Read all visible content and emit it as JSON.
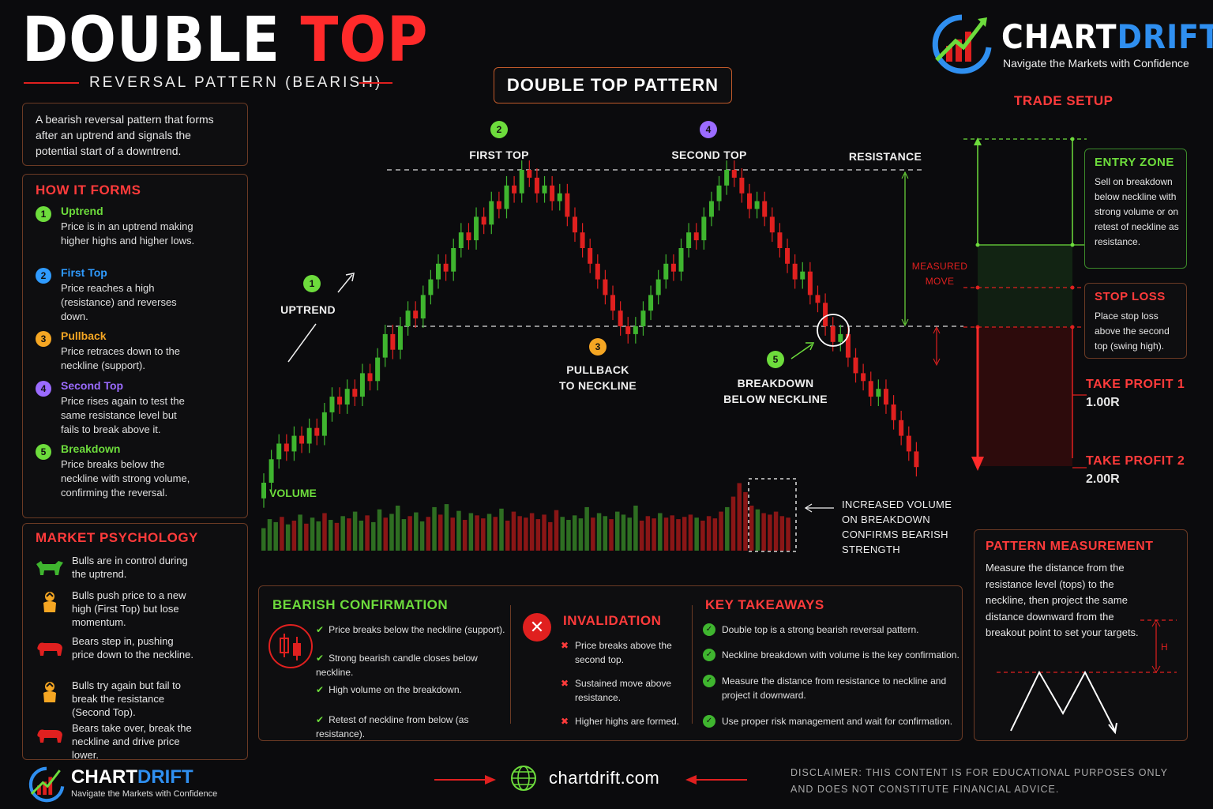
{
  "header": {
    "title_part1": "DOUBLE ",
    "title_part2": "TOP",
    "subtitle": "REVERSAL PATTERN (BEARISH)"
  },
  "brand": {
    "name_part1": "CHART",
    "name_part2": "DRIFT",
    "tagline": "Navigate the Markets with Confidence"
  },
  "intro": "A bearish reversal pattern that forms after an uptrend and signals the potential start of a downtrend.",
  "how_it_forms": {
    "title": "HOW IT FORMS",
    "steps": [
      {
        "num": "1",
        "title": "Uptrend",
        "desc": "Price is in an uptrend making higher highs and higher lows.",
        "color": "#6ddc3c"
      },
      {
        "num": "2",
        "title": "First Top",
        "desc": "Price reaches a high (resistance) and reverses down.",
        "color": "#2f9bff"
      },
      {
        "num": "3",
        "title": "Pullback",
        "desc": "Price retraces down to the neckline (support).",
        "color": "#f5a623"
      },
      {
        "num": "4",
        "title": "Second Top",
        "desc": "Price rises again to test the same resistance level but fails to break above it.",
        "color": "#9b6bff"
      },
      {
        "num": "5",
        "title": "Breakdown",
        "desc": "Price breaks below the neckline with strong volume, confirming the reversal.",
        "color": "#6ddc3c"
      }
    ]
  },
  "psychology": {
    "title": "MARKET PSYCHOLOGY",
    "items": [
      {
        "icon": "bull-icon",
        "text": "Bulls are in control during the uptrend."
      },
      {
        "icon": "bull-trader-icon",
        "text": "Bulls push price to a new high (First Top) but lose momentum."
      },
      {
        "icon": "bear-icon",
        "text": "Bears step in, pushing price down to the neckline."
      },
      {
        "icon": "bull-trader-icon",
        "text": "Bulls try again but fail to break the resistance (Second Top)."
      },
      {
        "icon": "bear-icon",
        "text": "Bears take over, break the neckline and drive price lower."
      }
    ]
  },
  "chart_title": "DOUBLE TOP PATTERN",
  "chart_labels": {
    "first_top": "FIRST TOP",
    "second_top": "SECOND TOP",
    "resistance": "RESISTANCE",
    "uptrend": "UPTREND",
    "pullback_line1": "PULLBACK",
    "pullback_line2": "TO NECKLINE",
    "breakdown_line1": "BREAKDOWN",
    "breakdown_line2": "BELOW NECKLINE",
    "measured_line1": "MEASURED",
    "measured_line2": "MOVE",
    "volume": "VOLUME",
    "volume_note": [
      "INCREASED VOLUME",
      "ON BREAKDOWN",
      "CONFIRMS BEARISH",
      "STRENGTH"
    ],
    "markers": {
      "uptrend": "1",
      "first_top": "2",
      "pullback": "3",
      "second_top": "4",
      "breakdown": "5"
    }
  },
  "chart_data": {
    "type": "candlestick",
    "title": "DOUBLE TOP PATTERN",
    "resistance_level": 100,
    "neckline_level": 80,
    "closes": [
      60,
      63,
      65,
      64,
      66,
      65,
      67,
      66,
      69,
      71,
      70,
      72,
      71,
      74,
      73,
      76,
      79,
      77,
      80,
      82,
      81,
      84,
      86,
      88,
      87,
      90,
      92,
      91,
      94,
      93,
      96,
      95,
      98,
      97,
      100,
      99,
      97,
      98,
      96,
      97,
      94,
      92,
      90,
      88,
      86,
      84,
      82,
      80,
      79,
      80,
      82,
      84,
      86,
      88,
      87,
      90,
      92,
      91,
      94,
      96,
      98,
      100,
      99,
      97,
      95,
      96,
      94,
      92,
      90,
      88,
      86,
      87,
      84,
      83,
      80,
      78,
      79,
      76,
      74,
      73,
      71,
      72,
      70,
      68,
      66,
      64,
      62
    ],
    "volume": [
      30,
      42,
      38,
      45,
      35,
      40,
      48,
      36,
      44,
      39,
      50,
      41,
      37,
      46,
      43,
      52,
      40,
      47,
      38,
      55,
      44,
      49,
      60,
      42,
      46,
      51,
      39,
      45,
      58,
      48,
      62,
      44,
      53,
      41,
      50,
      47,
      43,
      49,
      45,
      56,
      40,
      52,
      46,
      44,
      50,
      42,
      48,
      38,
      54,
      45,
      41,
      47,
      43,
      58,
      44,
      50,
      46,
      42,
      52,
      48,
      44,
      60,
      40,
      46,
      43,
      50,
      44,
      47,
      42,
      45,
      48,
      44,
      40,
      46,
      43,
      52,
      58,
      72,
      90,
      78,
      60,
      55,
      50,
      48,
      52,
      46,
      44
    ]
  },
  "trade_setup": {
    "title": "TRADE SETUP",
    "entry": {
      "title": "ENTRY ZONE",
      "text": "Sell on breakdown below neckline with strong volume or on retest of neckline as resistance."
    },
    "stop": {
      "title": "STOP LOSS",
      "text": "Place stop loss above the second top (swing high)."
    },
    "tp1": {
      "title": "TAKE PROFIT 1",
      "value": "1.00R"
    },
    "tp2": {
      "title": "TAKE PROFIT 2",
      "value": "2.00R"
    }
  },
  "measurement": {
    "title": "PATTERN MEASUREMENT",
    "text": "Measure the distance from the resistance level (tops) to the neckline, then project the same distance downward from the breakout point to set your targets.",
    "h_label": "H"
  },
  "confirmation": {
    "title": "BEARISH CONFIRMATION",
    "items": [
      "Price breaks below the neckline (support).",
      "Strong bearish candle closes below neckline.",
      "High volume on the breakdown.",
      "Retest of neckline from below (as resistance)."
    ]
  },
  "invalidation": {
    "title": "INVALIDATION",
    "items": [
      "Price breaks above the second top.",
      "Sustained move above resistance.",
      "Higher highs are formed."
    ]
  },
  "takeaways": {
    "title": "KEY TAKEAWAYS",
    "items": [
      "Double top is a strong bearish reversal pattern.",
      "Neckline breakdown with volume is the key confirmation.",
      "Measure the distance from resistance to neckline and project it downward.",
      "Use proper risk management and wait for confirmation."
    ]
  },
  "footer": {
    "website": "chartdrift.com",
    "disclaimer_line1": "DISCLAIMER: THIS CONTENT IS FOR EDUCATIONAL PURPOSES ONLY",
    "disclaimer_line2": "AND DOES NOT CONSTITUTE FINANCIAL ADVICE."
  },
  "colors": {
    "bull": "#3fb52f",
    "bear": "#e0201f",
    "accent_red": "#ff3b3b",
    "accent_green": "#6ddc3c"
  }
}
